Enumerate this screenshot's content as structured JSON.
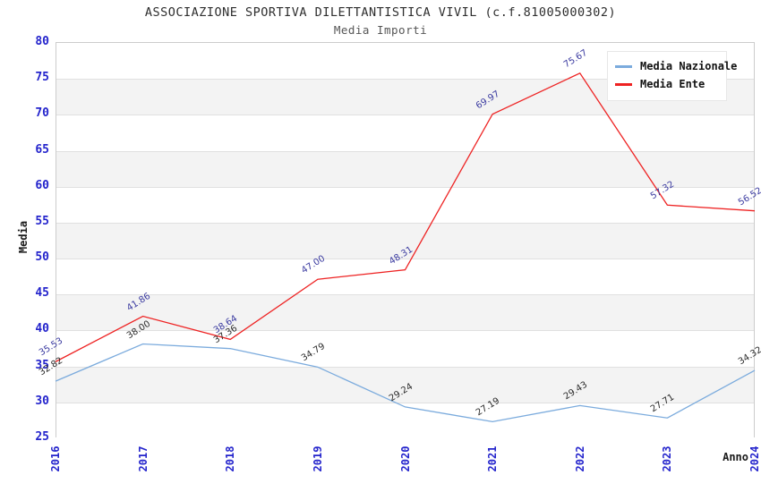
{
  "header": {
    "title": "ASSOCIAZIONE SPORTIVA DILETTANTISTICA VIVIL (c.f.81005000302)",
    "subtitle": "Media Importi"
  },
  "chart_data": {
    "type": "line",
    "title": "ASSOCIAZIONE SPORTIVA DILETTANTISTICA VIVIL (c.f.81005000302)",
    "subtitle": "Media Importi",
    "xlabel": "Anno",
    "ylabel": "Media",
    "x_tick_labels": [
      "2016",
      "2017",
      "2018",
      "2019",
      "2020",
      "2021",
      "2022",
      "2023",
      "2024"
    ],
    "y_tick_labels": [
      "80",
      "75",
      "70",
      "65",
      "60",
      "55",
      "50",
      "45",
      "40",
      "35",
      "30",
      "25"
    ],
    "ylim": [
      25,
      80
    ],
    "ytick_step": 5,
    "grid": "horizontal",
    "legend_position": "top-right",
    "band_colors": [
      "#ffffff",
      "#f3f3f3"
    ],
    "series": [
      {
        "name": "Media Nazionale",
        "color": "#7babdd",
        "label_color": "#2b2b2b",
        "values": [
          32.82,
          38.0,
          37.36,
          34.79,
          29.24,
          27.19,
          29.43,
          27.71,
          34.32
        ],
        "labels": [
          "32.82",
          "38.00",
          "37.36",
          "34.79",
          "29.24",
          "27.19",
          "29.43",
          "27.71",
          "34.32"
        ]
      },
      {
        "name": "Media Ente",
        "color": "#ee2222",
        "label_color": "#3a3aa0",
        "values": [
          35.53,
          41.86,
          38.64,
          47.0,
          48.31,
          69.97,
          75.67,
          57.32,
          56.52
        ],
        "labels": [
          "35.53",
          "41.86",
          "38.64",
          "47.00",
          "48.31",
          "69.97",
          "75.67",
          "57.32",
          "56.52"
        ]
      }
    ]
  }
}
